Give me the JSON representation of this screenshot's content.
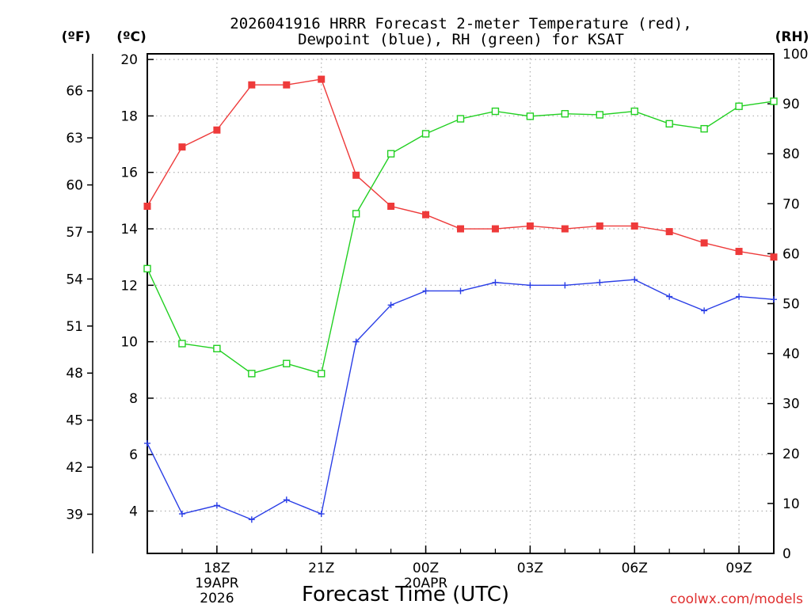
{
  "chart_data": {
    "type": "line",
    "title_line1": "2026041916 HRRR Forecast 2-meter Temperature (red),",
    "title_line2": "Dewpoint (blue), RH (green) for KSAT",
    "xlabel": "Forecast Time (UTC)",
    "unit_labels": {
      "fahrenheit": "(ºF)",
      "celsius": "(ºC)",
      "rh": "(RH)"
    },
    "credit": "coolwx.com/models",
    "x_hours": [
      0,
      1,
      2,
      3,
      4,
      5,
      6,
      7,
      8,
      9,
      10,
      11,
      12,
      13,
      14,
      15,
      16,
      17,
      18
    ],
    "x_start_hour_utc": 16,
    "x_ticks": [
      {
        "hour": 2,
        "lines": [
          "18Z",
          "19APR",
          "2026"
        ]
      },
      {
        "hour": 5,
        "lines": [
          "21Z"
        ]
      },
      {
        "hour": 8,
        "lines": [
          "00Z",
          "20APR"
        ]
      },
      {
        "hour": 11,
        "lines": [
          "03Z"
        ]
      },
      {
        "hour": 14,
        "lines": [
          "06Z"
        ]
      },
      {
        "hour": 17,
        "lines": [
          "09Z"
        ]
      }
    ],
    "ylim_celsius": [
      2.5,
      20.2
    ],
    "y_ticks_celsius": [
      4,
      6,
      8,
      10,
      12,
      14,
      16,
      18,
      20
    ],
    "y_ticks_fahrenheit": [
      39,
      42,
      45,
      48,
      51,
      54,
      57,
      60,
      63,
      66
    ],
    "ylim_rh": [
      0,
      100
    ],
    "y_ticks_rh": [
      0,
      10,
      20,
      30,
      40,
      50,
      60,
      70,
      80,
      90,
      100
    ],
    "grid": true,
    "series": [
      {
        "name": "Temperature",
        "axis": "celsius",
        "color": "#ee3a3a",
        "marker": "filled-square",
        "values": [
          14.8,
          16.9,
          17.5,
          19.1,
          19.1,
          19.3,
          15.9,
          14.8,
          14.5,
          14.0,
          14.0,
          14.1,
          14.0,
          14.1,
          14.1,
          13.9,
          13.5,
          13.2,
          13.0
        ]
      },
      {
        "name": "Dewpoint",
        "axis": "celsius",
        "color": "#2a3ee6",
        "marker": "plus",
        "values": [
          6.4,
          3.9,
          4.2,
          3.7,
          4.4,
          3.9,
          10.0,
          11.3,
          11.8,
          11.8,
          12.1,
          12.0,
          12.0,
          12.1,
          12.2,
          11.6,
          11.1,
          11.6,
          11.5
        ]
      },
      {
        "name": "RH",
        "axis": "rh",
        "color": "#22d022",
        "marker": "open-square",
        "values": [
          57,
          42,
          41,
          36,
          38,
          36,
          68,
          80,
          84,
          87,
          88.5,
          87.5,
          88,
          87.8,
          88.5,
          86,
          85,
          89.5,
          90.5
        ]
      }
    ]
  }
}
